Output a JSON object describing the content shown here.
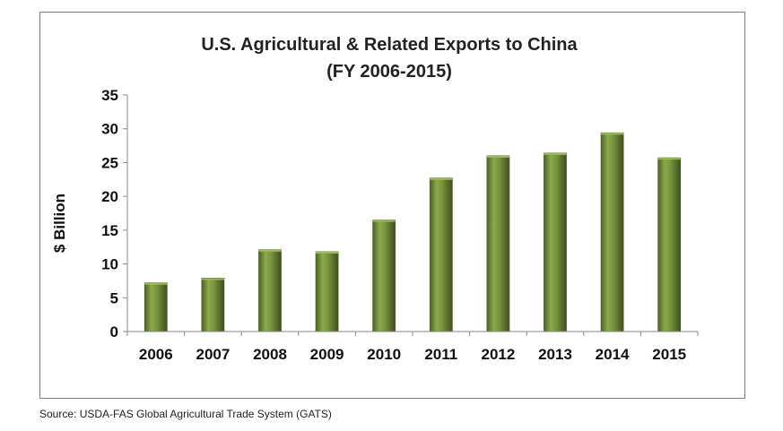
{
  "source_note": "Source:  USDA-FAS  Global  Agricultural  Trade  System  (GATS)",
  "chart_data": {
    "type": "bar",
    "title": "U.S. Agricultural & Related Exports to China",
    "subtitle": "(FY 2006-2015)",
    "xlabel": "",
    "ylabel": "$ Billion",
    "categories": [
      "2006",
      "2007",
      "2008",
      "2009",
      "2010",
      "2011",
      "2012",
      "2013",
      "2014",
      "2015"
    ],
    "values": [
      7.2,
      7.9,
      12.1,
      11.8,
      16.5,
      22.7,
      26.0,
      26.4,
      29.4,
      25.7
    ],
    "ylim": [
      0,
      35
    ],
    "yticks": [
      0,
      5,
      10,
      15,
      20,
      25,
      30,
      35
    ],
    "grid": false,
    "bar_color": "#77933c",
    "bar_dark_color": "#4f6228",
    "bar_light_color": "#9bbb59"
  }
}
